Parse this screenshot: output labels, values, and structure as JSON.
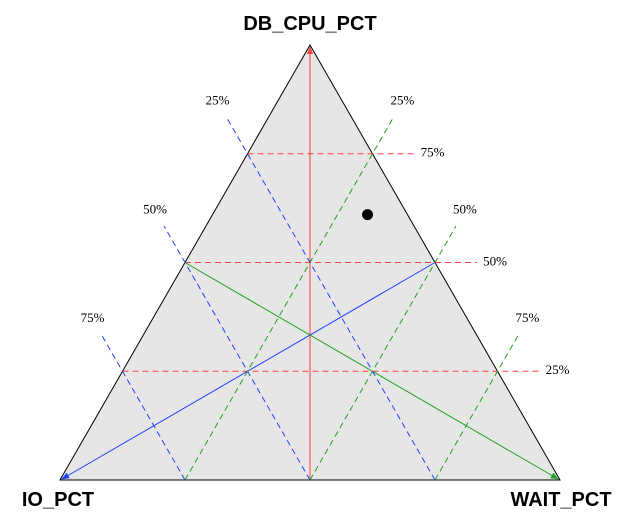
{
  "chart_data": {
    "type": "ternary",
    "axes": [
      {
        "name": "DB_CPU_PCT",
        "color": "#ff4040",
        "ticks": [
          {
            "value": 25,
            "label": "25%"
          },
          {
            "value": 50,
            "label": "50%"
          },
          {
            "value": 75,
            "label": "75%"
          }
        ]
      },
      {
        "name": "IO_PCT",
        "color": "#2040ff",
        "ticks": [
          {
            "value": 25,
            "label": "25%"
          },
          {
            "value": 50,
            "label": "50%"
          },
          {
            "value": 75,
            "label": "75%"
          }
        ]
      },
      {
        "name": "WAIT_PCT",
        "color": "#20a020",
        "ticks": [
          {
            "value": 25,
            "label": "25%"
          },
          {
            "value": 50,
            "label": "50%"
          },
          {
            "value": 75,
            "label": "75%"
          }
        ]
      }
    ],
    "series": [
      {
        "color": "#000000",
        "values": [
          61,
          8,
          31
        ]
      }
    ],
    "grid": true
  }
}
